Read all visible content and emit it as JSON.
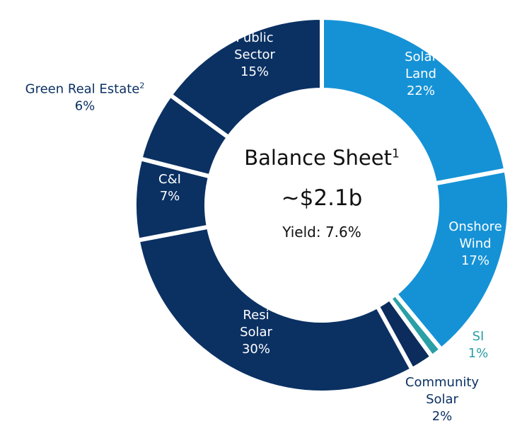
{
  "chart_data": {
    "type": "donut",
    "center_title": "Balance Sheet",
    "center_title_note": "1",
    "center_value": "~$2.1b",
    "center_subtitle": "Yield: 7.6%",
    "categories": [
      "Solar Land",
      "Onshore Wind",
      "SI",
      "Community Solar",
      "Resi Solar",
      "C&I",
      "Green Real Estate",
      "Public Sector"
    ],
    "category_notes": [
      null,
      null,
      null,
      null,
      null,
      null,
      "2",
      null
    ],
    "values": [
      22,
      17,
      1,
      2,
      30,
      7,
      6,
      15
    ],
    "value_labels": [
      "22%",
      "17%",
      "1%",
      "2%",
      "30%",
      "7%",
      "6%",
      "15%"
    ],
    "colors": [
      "#1592d6",
      "#1592d6",
      "#2a9fa6",
      "#0b2c5c",
      "#0b3163",
      "#0b3163",
      "#0b3163",
      "#0b3163"
    ]
  }
}
